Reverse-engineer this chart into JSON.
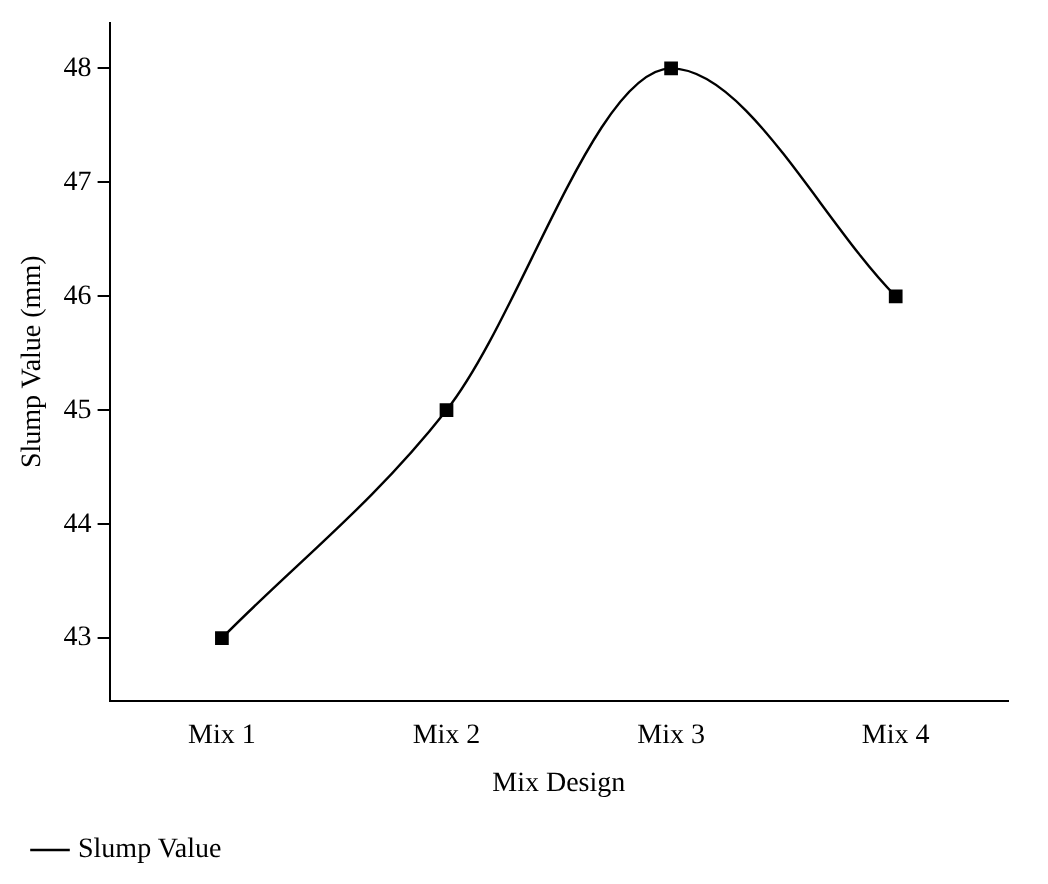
{
  "chart_data": {
    "type": "line",
    "xlabel": "Mix Design",
    "ylabel": "Slump Value (mm)",
    "categories": [
      "Mix 1",
      "Mix 2",
      "Mix 3",
      "Mix 4"
    ],
    "series": [
      {
        "name": "Slump Value",
        "color": "#000000",
        "values": [
          43,
          45,
          48,
          46
        ]
      }
    ],
    "ylim": [
      42.45,
      48.4
    ],
    "yticks": [
      43,
      44,
      45,
      46,
      47,
      48
    ],
    "grid": false,
    "legend": "bottom left",
    "marker": "square",
    "line_style": "solid"
  }
}
